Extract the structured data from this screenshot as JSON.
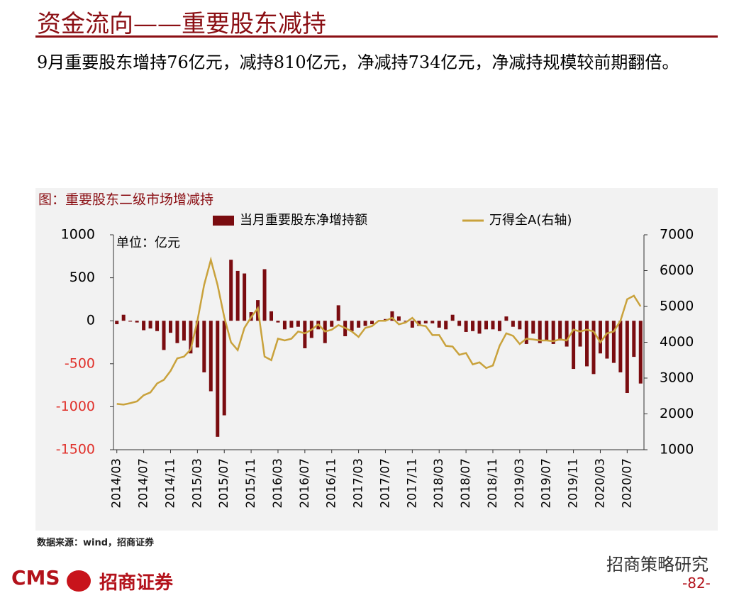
{
  "header": {
    "title": "资金流向——重要股东减持"
  },
  "summary": "9月重要股东增持76亿元，减持810亿元，净减持734亿元，净减持规模较前期翻倍。",
  "chart_data": {
    "type": "combo",
    "title": "图：重要股东二级市场增减持",
    "unit_label": "单位：亿元",
    "categories": [
      "2014/03",
      null,
      null,
      null,
      "2014/07",
      null,
      null,
      null,
      "2014/11",
      null,
      null,
      null,
      "2015/03",
      null,
      null,
      null,
      "2015/07",
      null,
      null,
      null,
      "2015/11",
      null,
      null,
      null,
      "2016/03",
      null,
      null,
      null,
      "2016/07",
      null,
      null,
      null,
      "2016/11",
      null,
      null,
      null,
      "2017/03",
      null,
      null,
      null,
      "2017/07",
      null,
      null,
      null,
      "2017/11",
      null,
      null,
      null,
      "2018/03",
      null,
      null,
      null,
      "2018/07",
      null,
      null,
      null,
      "2018/11",
      null,
      null,
      null,
      "2019/03",
      null,
      null,
      null,
      "2019/07",
      null,
      null,
      null,
      "2019/11",
      null,
      null,
      null,
      "2020/03",
      null,
      null,
      null,
      "2020/07",
      null,
      null
    ],
    "series": [
      {
        "name": "当月重要股东净增持额",
        "type": "bar",
        "color": "#7a0c10",
        "values": [
          -40,
          70,
          -10,
          -20,
          -110,
          -90,
          -120,
          -340,
          -140,
          -260,
          -230,
          -380,
          -310,
          -600,
          -820,
          -1350,
          -1100,
          710,
          580,
          550,
          100,
          240,
          600,
          110,
          -20,
          -100,
          -80,
          -70,
          -320,
          -200,
          -100,
          -260,
          -70,
          180,
          -180,
          -120,
          -80,
          -60,
          -40,
          -10,
          20,
          110,
          50,
          -10,
          -80,
          -60,
          -30,
          -30,
          -80,
          -100,
          70,
          -60,
          -130,
          -120,
          -150,
          -100,
          -100,
          -120,
          50,
          -70,
          -100,
          -270,
          -150,
          -260,
          -230,
          -270,
          -230,
          -300,
          -560,
          -300,
          -530,
          -620,
          -380,
          -440,
          -490,
          -600,
          -840,
          -420,
          -730
        ]
      },
      {
        "name": "万得全A(右轴)",
        "type": "line",
        "axis": "y2",
        "color": "#c9a23c",
        "values": [
          2280,
          2260,
          2300,
          2350,
          2520,
          2600,
          2850,
          2950,
          3200,
          3550,
          3600,
          3800,
          4600,
          5600,
          6300,
          5600,
          4700,
          4000,
          3780,
          4400,
          4700,
          4950,
          3600,
          3500,
          4100,
          4050,
          4100,
          4300,
          4250,
          4350,
          4500,
          4300,
          4350,
          4480,
          4400,
          4300,
          4150,
          4400,
          4450,
          4600,
          4600,
          4680,
          4500,
          4550,
          4680,
          4480,
          4450,
          4200,
          4200,
          3900,
          3880,
          3650,
          3700,
          3380,
          3440,
          3280,
          3350,
          3900,
          4250,
          4180,
          3950,
          4100,
          4080,
          4050,
          4050,
          4030,
          4080,
          4050,
          4350,
          4300,
          4350,
          4300,
          4000,
          4250,
          4300,
          4600,
          5200,
          5300,
          5000
        ]
      }
    ],
    "ylim": [
      -1500,
      1000
    ],
    "yticks": [
      -1500,
      -1000,
      -500,
      0,
      500,
      1000
    ],
    "y2lim": [
      1000,
      7000
    ],
    "y2ticks": [
      1000,
      2000,
      3000,
      4000,
      5000,
      6000,
      7000
    ],
    "legend": "top"
  },
  "source": "数据来源：wind，招商证券",
  "footer": {
    "logo": "CMS",
    "company": "招商证券",
    "watermark": "招商策略研究",
    "page": "-82-"
  }
}
